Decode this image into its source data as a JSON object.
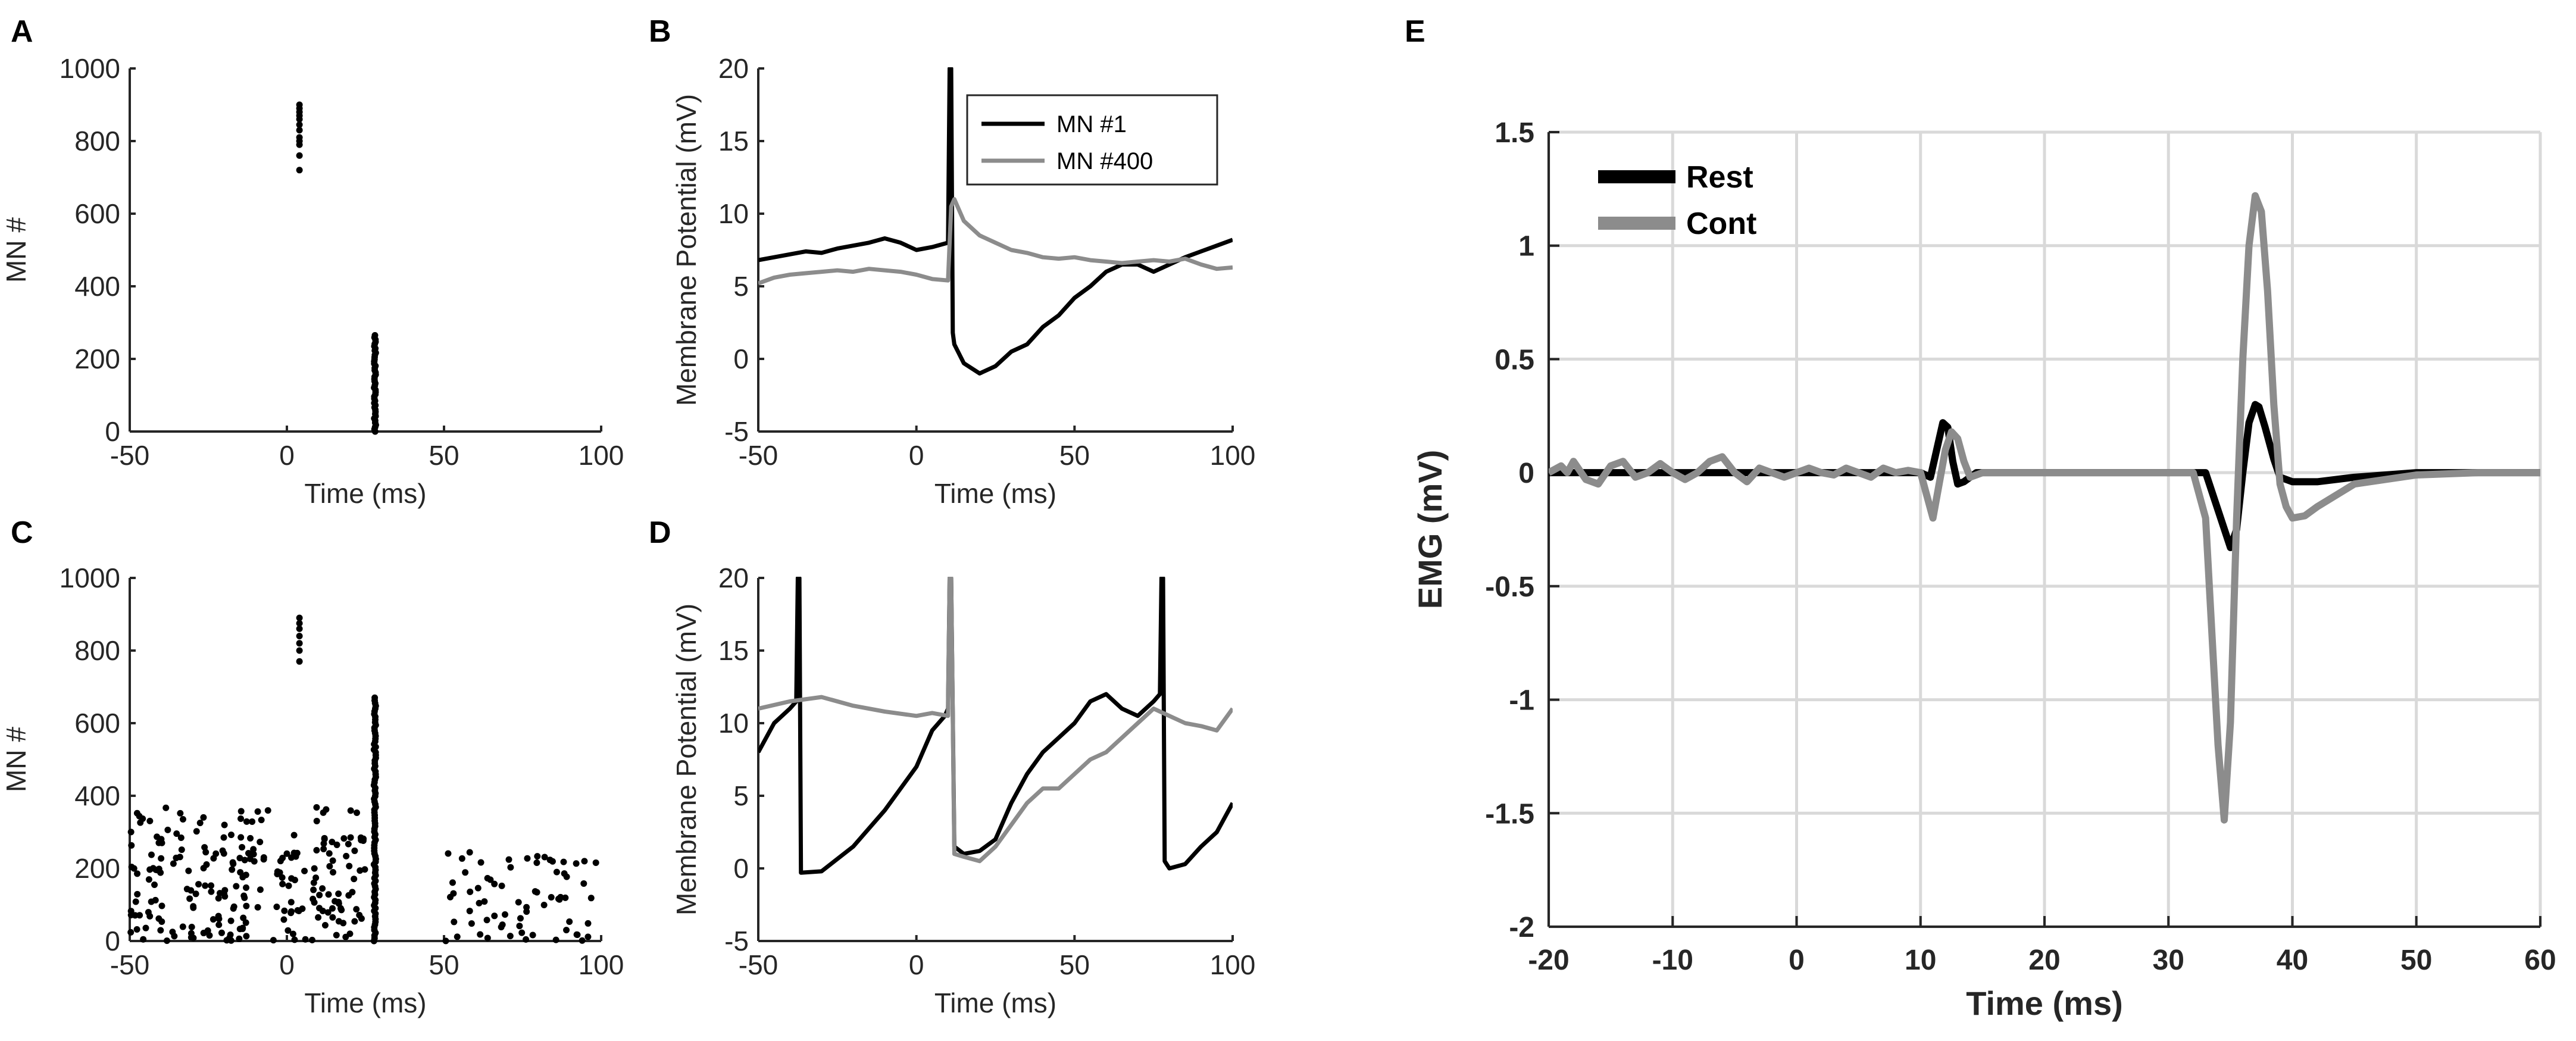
{
  "chart_data": [
    {
      "panel": "A",
      "type": "scatter",
      "xlabel": "Time (ms)",
      "ylabel": "MN #",
      "xlim": [
        -50,
        100
      ],
      "ylim": [
        0,
        1000
      ],
      "xticks": [
        "-50",
        "0",
        "50",
        "100"
      ],
      "yticks": [
        "0",
        "200",
        "400",
        "600",
        "800",
        "1000"
      ],
      "clusters": [
        {
          "x": 4,
          "y": [
            720,
            760,
            790,
            800,
            810,
            830,
            845,
            860,
            870,
            880,
            890,
            900
          ]
        },
        {
          "x": 28,
          "y_range": [
            0,
            265
          ],
          "count": 45
        }
      ]
    },
    {
      "panel": "B",
      "type": "line",
      "xlabel": "Time (ms)",
      "ylabel": "Membrane Potential (mV)",
      "xlim": [
        -50,
        100
      ],
      "ylim": [
        -5,
        20
      ],
      "xticks": [
        "-50",
        "0",
        "50",
        "100"
      ],
      "yticks": [
        "-5",
        "0",
        "5",
        "10",
        "15",
        "20"
      ],
      "legend": [
        "MN #1",
        "MN #400"
      ],
      "series": [
        {
          "name": "MN #1",
          "color": "#000000",
          "x": [
            -50,
            -45,
            -40,
            -35,
            -30,
            -25,
            -20,
            -15,
            -10,
            -5,
            0,
            5,
            10,
            10.5,
            11,
            11.5,
            12,
            15,
            20,
            25,
            30,
            35,
            40,
            45,
            50,
            55,
            60,
            65,
            70,
            75,
            80,
            85,
            90,
            95,
            100
          ],
          "y": [
            6.8,
            7.0,
            7.2,
            7.4,
            7.3,
            7.6,
            7.8,
            8.0,
            8.3,
            8.0,
            7.5,
            7.7,
            8.0,
            20,
            20,
            1.8,
            1.0,
            -0.3,
            -1.0,
            -0.5,
            0.5,
            1.0,
            2.2,
            3.0,
            4.2,
            5.0,
            6.0,
            6.5,
            6.5,
            6.0,
            6.5,
            7.0,
            7.4,
            7.8,
            8.2
          ]
        },
        {
          "name": "MN #400",
          "color": "#8c8c8c",
          "x": [
            -50,
            -45,
            -40,
            -35,
            -30,
            -25,
            -20,
            -15,
            -10,
            -5,
            0,
            5,
            10,
            11,
            12,
            15,
            20,
            25,
            30,
            35,
            40,
            45,
            50,
            55,
            60,
            65,
            70,
            75,
            80,
            85,
            90,
            95,
            100
          ],
          "y": [
            5.2,
            5.6,
            5.8,
            5.9,
            6.0,
            6.1,
            6.0,
            6.2,
            6.1,
            6.0,
            5.8,
            5.5,
            5.4,
            10.5,
            11.0,
            9.5,
            8.5,
            8.0,
            7.5,
            7.3,
            7.0,
            6.9,
            7.0,
            6.8,
            6.7,
            6.6,
            6.7,
            6.8,
            6.7,
            6.9,
            6.5,
            6.2,
            6.3
          ]
        }
      ]
    },
    {
      "panel": "C",
      "type": "scatter",
      "xlabel": "Time (ms)",
      "ylabel": "MN #",
      "xlim": [
        -50,
        100
      ],
      "ylim": [
        0,
        1000
      ],
      "xticks": [
        "-50",
        "0",
        "50",
        "100"
      ],
      "yticks": [
        "0",
        "200",
        "400",
        "600",
        "800",
        "1000"
      ],
      "clusters": [
        {
          "x_range": [
            -50,
            25
          ],
          "y_range": [
            0,
            370
          ],
          "count": 240
        },
        {
          "x": 4,
          "y": [
            770,
            800,
            820,
            840,
            860,
            875,
            890
          ]
        },
        {
          "x": 28,
          "y_range": [
            0,
            670
          ],
          "count": 90
        },
        {
          "x_range": [
            50,
            100
          ],
          "y_range": [
            0,
            250
          ],
          "count": 70
        }
      ]
    },
    {
      "panel": "D",
      "type": "line",
      "xlabel": "Time (ms)",
      "ylabel": "Membrane Potential (mV)",
      "xlim": [
        -50,
        100
      ],
      "ylim": [
        -5,
        20
      ],
      "xticks": [
        "-50",
        "0",
        "50",
        "100"
      ],
      "yticks": [
        "-5",
        "0",
        "5",
        "10",
        "15",
        "20"
      ],
      "series": [
        {
          "name": "MN #1",
          "color": "#000000",
          "x": [
            -50,
            -45,
            -40,
            -38,
            -37.5,
            -37,
            -36.5,
            -30,
            -20,
            -10,
            0,
            5,
            9,
            10,
            10.5,
            11,
            12,
            15,
            20,
            25,
            30,
            35,
            40,
            45,
            50,
            55,
            60,
            65,
            70,
            75,
            77,
            77.5,
            78,
            78.5,
            80,
            85,
            90,
            95,
            100
          ],
          "y": [
            8.0,
            10.0,
            11.0,
            11.5,
            20,
            20,
            -0.3,
            -0.2,
            1.5,
            4.0,
            7.0,
            9.5,
            10.5,
            11.0,
            20,
            20,
            1.5,
            1.0,
            1.2,
            2.0,
            4.5,
            6.5,
            8.0,
            9.0,
            10.0,
            11.5,
            12.0,
            11.0,
            10.5,
            11.5,
            12.0,
            20,
            20,
            0.5,
            0.0,
            0.3,
            1.5,
            2.5,
            4.5
          ]
        },
        {
          "name": "MN #400",
          "color": "#8c8c8c",
          "x": [
            -50,
            -40,
            -30,
            -20,
            -10,
            0,
            5,
            10,
            10.5,
            11,
            12,
            15,
            20,
            25,
            30,
            35,
            40,
            45,
            50,
            55,
            60,
            65,
            70,
            75,
            80,
            85,
            90,
            95,
            100
          ],
          "y": [
            11.0,
            11.5,
            11.8,
            11.2,
            10.8,
            10.5,
            10.7,
            10.5,
            20,
            20,
            1.0,
            0.8,
            0.5,
            1.5,
            3.0,
            4.5,
            5.5,
            5.5,
            6.5,
            7.5,
            8.0,
            9.0,
            10.0,
            11.0,
            10.5,
            10.0,
            9.8,
            9.5,
            11.0
          ]
        }
      ]
    },
    {
      "panel": "E",
      "type": "line",
      "xlabel": "Time (ms)",
      "ylabel": "EMG (mV)",
      "xlim": [
        -20,
        60
      ],
      "ylim": [
        -2,
        1.5
      ],
      "xticks": [
        "-20",
        "-10",
        "0",
        "10",
        "20",
        "30",
        "40",
        "50",
        "60"
      ],
      "yticks": [
        "-2",
        "-1.5",
        "-1",
        "-0.5",
        "0",
        "0.5",
        "1",
        "1.5"
      ],
      "grid": true,
      "legend": [
        "Rest",
        "Cont"
      ],
      "series": [
        {
          "name": "Rest",
          "color": "#000000",
          "x": [
            -20,
            -10,
            0,
            10,
            10.8,
            11.3,
            11.8,
            12.2,
            12.6,
            13.0,
            13.5,
            14.5,
            20,
            30,
            33,
            35,
            35.5,
            36,
            36.5,
            37,
            37.3,
            37.8,
            38.5,
            39,
            40,
            42,
            45,
            50,
            60
          ],
          "y": [
            0,
            0,
            0,
            0,
            -0.02,
            0.1,
            0.22,
            0.2,
            0.05,
            -0.05,
            -0.04,
            0.0,
            0.0,
            0.0,
            0.0,
            -0.33,
            -0.25,
            0.0,
            0.22,
            0.3,
            0.29,
            0.2,
            0.06,
            -0.02,
            -0.04,
            -0.04,
            -0.02,
            0.0,
            0.0
          ]
        },
        {
          "name": "Cont",
          "color": "#8c8c8c",
          "x": [
            -20,
            -19,
            -18.5,
            -18,
            -17,
            -16,
            -15,
            -14,
            -13,
            -12,
            -11,
            -10,
            -9,
            -8,
            -7,
            -6,
            -5,
            -4,
            -3,
            -2,
            -1,
            0,
            1,
            2,
            3,
            4,
            5,
            6,
            7,
            8,
            9,
            10,
            10.5,
            11,
            11.5,
            12,
            12.5,
            13,
            13.5,
            14,
            15,
            20,
            25,
            30,
            32,
            33,
            33.5,
            34,
            34.5,
            35,
            35.5,
            36,
            36.5,
            37,
            37.5,
            38,
            38.5,
            39,
            39.5,
            40,
            41,
            42,
            45,
            50,
            55,
            60
          ],
          "y": [
            0.0,
            0.03,
            0.0,
            0.05,
            -0.03,
            -0.05,
            0.03,
            0.05,
            -0.02,
            0.0,
            0.04,
            0.0,
            -0.03,
            0.0,
            0.05,
            0.07,
            0.0,
            -0.04,
            0.02,
            0.0,
            -0.02,
            0.0,
            0.02,
            0.0,
            -0.01,
            0.02,
            0.0,
            -0.02,
            0.02,
            0.0,
            0.01,
            0.0,
            -0.1,
            -0.2,
            -0.05,
            0.1,
            0.18,
            0.15,
            0.05,
            -0.02,
            0.0,
            0.0,
            0.0,
            0.0,
            0.0,
            -0.2,
            -0.7,
            -1.2,
            -1.53,
            -1.1,
            -0.2,
            0.5,
            1.0,
            1.22,
            1.15,
            0.8,
            0.3,
            -0.05,
            -0.15,
            -0.2,
            -0.19,
            -0.15,
            -0.05,
            -0.01,
            0.0,
            0.0
          ]
        }
      ]
    }
  ]
}
